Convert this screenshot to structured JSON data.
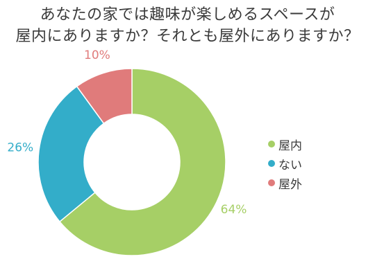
{
  "chart_data": {
    "type": "pie",
    "title_lines": [
      "あなたの家では趣味が楽しめるスペースが",
      "屋内にありますか？それとも屋外にありますか？"
    ],
    "donut": true,
    "categories": [
      "屋内",
      "ない",
      "屋外"
    ],
    "values": [
      64,
      26,
      10
    ],
    "value_labels": [
      "64%",
      "26%",
      "10%"
    ],
    "colors": [
      "#a6cf66",
      "#33adc9",
      "#e07b7b"
    ],
    "legend_position": "right"
  }
}
